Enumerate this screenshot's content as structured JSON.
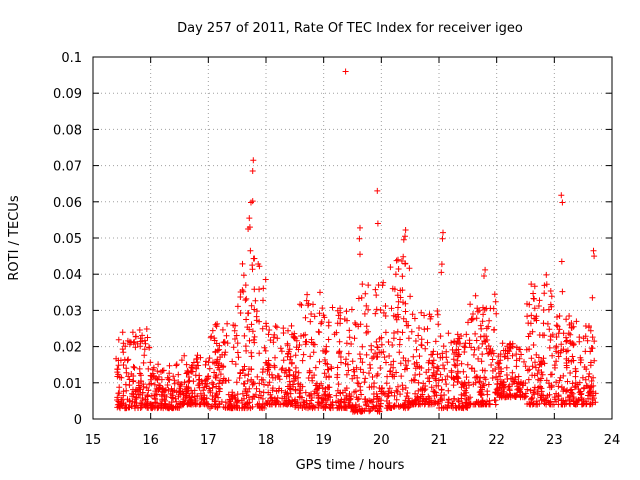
{
  "chart_data": {
    "type": "scatter",
    "title": "Day 257 of 2011, Rate Of TEC Index for receiver igeo",
    "xlabel": "GPS time / hours",
    "ylabel": "ROTI / TECUs",
    "xlim": [
      15,
      24
    ],
    "ylim": [
      0,
      0.1
    ],
    "xticks": [
      "15",
      "16",
      "17",
      "18",
      "19",
      "20",
      "21",
      "22",
      "23",
      "24"
    ],
    "yticks": [
      "0",
      "0.01",
      "0.02",
      "0.03",
      "0.04",
      "0.05",
      "0.06",
      "0.07",
      "0.08",
      "0.09",
      "0.1"
    ],
    "grid": true,
    "marker": "+",
    "series_color": "#ff0000",
    "notable_points": [
      {
        "x": 19.38,
        "y": 0.096
      },
      {
        "x": 17.78,
        "y": 0.0715
      },
      {
        "x": 17.77,
        "y": 0.0685
      },
      {
        "x": 19.93,
        "y": 0.063
      },
      {
        "x": 23.12,
        "y": 0.0618
      },
      {
        "x": 23.14,
        "y": 0.0598
      },
      {
        "x": 17.77,
        "y": 0.0602
      },
      {
        "x": 17.74,
        "y": 0.0598
      },
      {
        "x": 17.71,
        "y": 0.0555
      },
      {
        "x": 17.72,
        "y": 0.053
      },
      {
        "x": 17.69,
        "y": 0.0525
      },
      {
        "x": 19.94,
        "y": 0.054
      },
      {
        "x": 19.63,
        "y": 0.0528
      },
      {
        "x": 19.62,
        "y": 0.0498
      },
      {
        "x": 19.63,
        "y": 0.0455
      },
      {
        "x": 20.42,
        "y": 0.0522
      },
      {
        "x": 20.41,
        "y": 0.0505
      },
      {
        "x": 20.39,
        "y": 0.0495
      },
      {
        "x": 20.38,
        "y": 0.0448
      },
      {
        "x": 21.07,
        "y": 0.0515
      },
      {
        "x": 21.06,
        "y": 0.0498
      },
      {
        "x": 21.05,
        "y": 0.0428
      },
      {
        "x": 21.04,
        "y": 0.0405
      },
      {
        "x": 23.13,
        "y": 0.0435
      },
      {
        "x": 23.68,
        "y": 0.0465
      },
      {
        "x": 23.69,
        "y": 0.045
      },
      {
        "x": 17.73,
        "y": 0.0465
      },
      {
        "x": 17.76,
        "y": 0.0425
      },
      {
        "x": 23.14,
        "y": 0.0352
      },
      {
        "x": 23.66,
        "y": 0.0335
      },
      {
        "x": 21.8,
        "y": 0.0412
      },
      {
        "x": 21.78,
        "y": 0.0395
      },
      {
        "x": 22.86,
        "y": 0.0398
      }
    ],
    "bulk_envelope": {
      "description": "Dense cluster of measurements per time segment",
      "segments": [
        {
          "x": [
            15.4,
            16.0
          ],
          "y_min": 0.003,
          "y_max": 0.025
        },
        {
          "x": [
            16.0,
            16.5
          ],
          "y_min": 0.003,
          "y_max": 0.016
        },
        {
          "x": [
            16.5,
            17.0
          ],
          "y_min": 0.004,
          "y_max": 0.018
        },
        {
          "x": [
            17.0,
            17.5
          ],
          "y_min": 0.003,
          "y_max": 0.027
        },
        {
          "x": [
            17.5,
            18.0
          ],
          "y_min": 0.003,
          "y_max": 0.045
        },
        {
          "x": [
            18.0,
            18.5
          ],
          "y_min": 0.004,
          "y_max": 0.026
        },
        {
          "x": [
            18.5,
            19.0
          ],
          "y_min": 0.003,
          "y_max": 0.036
        },
        {
          "x": [
            19.0,
            19.5
          ],
          "y_min": 0.003,
          "y_max": 0.031
        },
        {
          "x": [
            19.5,
            20.0
          ],
          "y_min": 0.002,
          "y_max": 0.038
        },
        {
          "x": [
            20.0,
            20.5
          ],
          "y_min": 0.003,
          "y_max": 0.044
        },
        {
          "x": [
            20.5,
            21.0
          ],
          "y_min": 0.004,
          "y_max": 0.03
        },
        {
          "x": [
            21.0,
            21.5
          ],
          "y_min": 0.003,
          "y_max": 0.024
        },
        {
          "x": [
            21.5,
            22.0
          ],
          "y_min": 0.004,
          "y_max": 0.035
        },
        {
          "x": [
            22.0,
            22.5
          ],
          "y_min": 0.006,
          "y_max": 0.021
        },
        {
          "x": [
            22.5,
            23.0
          ],
          "y_min": 0.004,
          "y_max": 0.038
        },
        {
          "x": [
            23.0,
            23.5
          ],
          "y_min": 0.004,
          "y_max": 0.029
        },
        {
          "x": [
            23.5,
            23.72
          ],
          "y_min": 0.004,
          "y_max": 0.027
        }
      ]
    }
  }
}
